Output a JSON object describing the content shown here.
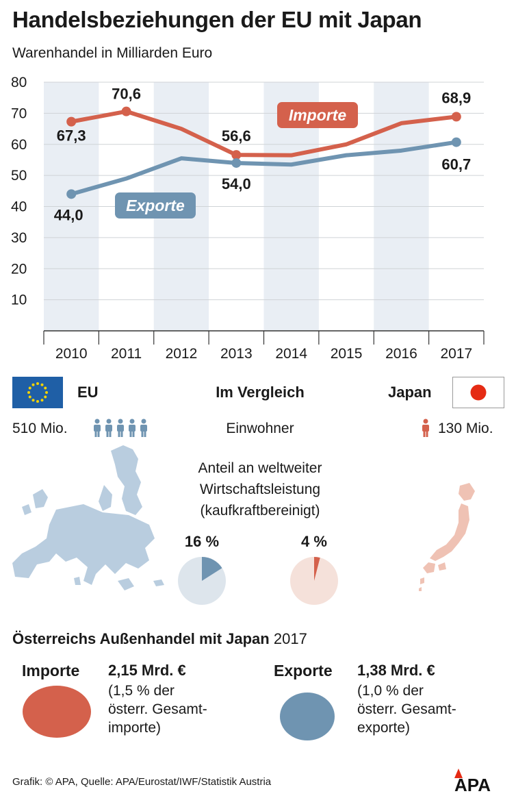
{
  "title": "Handelsbeziehungen der EU mit Japan",
  "subtitle": "Warenhandel in Milliarden Euro",
  "chart_data": {
    "type": "line",
    "title": "Handelsbeziehungen der EU mit Japan",
    "ylabel": "Warenhandel in Milliarden Euro",
    "xlabel": "",
    "categories": [
      "2010",
      "2011",
      "2012",
      "2013",
      "2014",
      "2015",
      "2016",
      "2017"
    ],
    "y_ticks": [
      80,
      70,
      60,
      50,
      40,
      30,
      20,
      10
    ],
    "ylim": [
      0,
      80
    ],
    "series": [
      {
        "name": "Importe",
        "color": "#d4614c",
        "values": [
          67.3,
          70.6,
          65.0,
          56.6,
          56.5,
          60.0,
          66.8,
          68.9
        ],
        "labels": {
          "0": "67,3",
          "1": "70,6",
          "3": "56,6",
          "7": "68,9"
        }
      },
      {
        "name": "Exporte",
        "color": "#6f94b1",
        "values": [
          44.0,
          49.0,
          55.5,
          54.0,
          53.5,
          56.5,
          58.0,
          60.7
        ],
        "labels": {
          "0": "44,0",
          "3": "54,0",
          "7": "60,7"
        }
      }
    ]
  },
  "comparison": {
    "eu_label": "EU",
    "heading": "Im Vergleich",
    "japan_label": "Japan",
    "eu_population": "510 Mio.",
    "population_label": "Einwohner",
    "japan_population": "130 Mio.",
    "share_label_line1": "Anteil an weltweiter",
    "share_label_line2": "Wirtschaftsleistung",
    "share_label_line3": "(kaufkraftbereinigt)",
    "eu_share": "16 %",
    "eu_share_value": 16,
    "japan_share": "4 %",
    "japan_share_value": 4
  },
  "austria": {
    "heading_bold": "Österreichs Außenhandel mit Japan",
    "heading_year": "2017",
    "imports_label": "Importe",
    "imports_amount": "2,15 Mrd. €",
    "imports_note": "(1,5 % der\nösterr. Gesamt-\nimporte)",
    "exports_label": "Exporte",
    "exports_amount": "1,38 Mrd. €",
    "exports_note": "(1,0 % der\nösterr. Gesamt-\nexporte)"
  },
  "footer": "Grafik: © APA, Quelle: APA/Eurostat/IWF/Statistik Austria",
  "logo_text": "APA",
  "colors": {
    "import": "#d4614c",
    "export": "#6f94b1",
    "band": "#e9eef4",
    "eu_flag": "#1f5fa6",
    "eu_star": "#f5d300",
    "japan_red": "#e52b14"
  }
}
